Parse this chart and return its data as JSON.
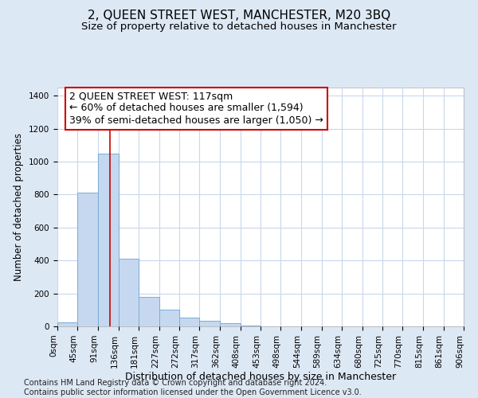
{
  "title": "2, QUEEN STREET WEST, MANCHESTER, M20 3BQ",
  "subtitle": "Size of property relative to detached houses in Manchester",
  "xlabel": "Distribution of detached houses by size in Manchester",
  "ylabel": "Number of detached properties",
  "bar_values": [
    25,
    810,
    1050,
    410,
    180,
    100,
    55,
    35,
    20,
    5,
    0,
    0,
    0,
    0,
    0,
    0,
    0,
    0,
    0,
    0
  ],
  "bin_edges": [
    0,
    45,
    91,
    136,
    181,
    227,
    272,
    317,
    362,
    408,
    453,
    498,
    544,
    589,
    634,
    680,
    725,
    770,
    815,
    861,
    906
  ],
  "bar_color": "#c5d8f0",
  "bar_edge_color": "#7aadd4",
  "property_size": 117,
  "vline_color": "#cc0000",
  "annotation_line1": "2 QUEEN STREET WEST: 117sqm",
  "annotation_line2": "← 60% of detached houses are smaller (1,594)",
  "annotation_line3": "39% of semi-detached houses are larger (1,050) →",
  "annotation_box_color": "#ffffff",
  "annotation_box_edge": "#cc0000",
  "xlim": [
    0,
    906
  ],
  "ylim": [
    0,
    1450
  ],
  "yticks": [
    0,
    200,
    400,
    600,
    800,
    1000,
    1200,
    1400
  ],
  "background_color": "#dde8f5",
  "plot_bg_color": "#ffffff",
  "grid_color": "#c8d8ec",
  "footer_text": "Contains HM Land Registry data © Crown copyright and database right 2024.\nContains public sector information licensed under the Open Government Licence v3.0.",
  "title_fontsize": 11,
  "subtitle_fontsize": 9.5,
  "xlabel_fontsize": 9,
  "ylabel_fontsize": 8.5,
  "tick_fontsize": 7.5,
  "annotation_fontsize": 9,
  "footer_fontsize": 7
}
